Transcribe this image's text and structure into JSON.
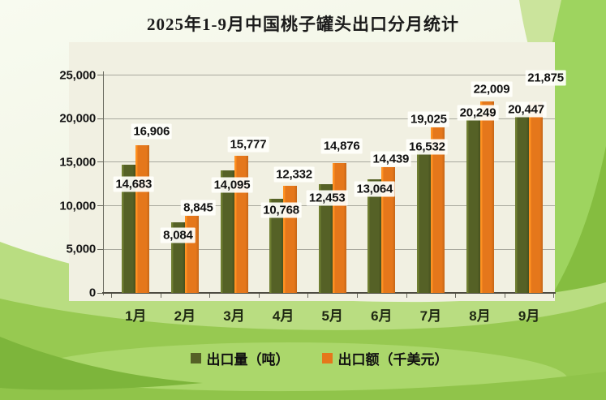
{
  "title": "2025年1-9月中国桃子罐头出口分月统计",
  "chart_data": {
    "type": "bar",
    "title": "2025年1-9月中国桃子罐头出口分月统计",
    "categories": [
      "1月",
      "2月",
      "3月",
      "4月",
      "5月",
      "6月",
      "7月",
      "8月",
      "9月"
    ],
    "series": [
      {
        "name": "出口量（吨）",
        "color": "#556126",
        "values": [
          14683,
          8084,
          14095,
          10768,
          12453,
          13064,
          16532,
          20249,
          20447
        ]
      },
      {
        "name": "出口额（千美元）",
        "color": "#e5771b",
        "values": [
          16906,
          8845,
          15777,
          12332,
          14876,
          14439,
          19025,
          22009,
          21875
        ]
      }
    ],
    "ylim": [
      0,
      25000
    ],
    "ytick_interval": 5000,
    "ytick_labels": [
      "0",
      "5,000",
      "10,000",
      "15,000",
      "20,000",
      "25,000"
    ],
    "grid": true,
    "data_labels": true,
    "legend_position": "bottom"
  },
  "colors": {
    "bar_volume": "#556126",
    "bar_value": "#e5771b",
    "plot_background": "#f1f0e2",
    "gridline": "#a9a99e",
    "axis": "#4e4c42",
    "text": "#111111",
    "slide_green_light": "#b9dd81",
    "slide_green_mid": "#97c951",
    "slide_green_bright": "#8fc44a",
    "slide_green_dark": "#7db53b"
  }
}
